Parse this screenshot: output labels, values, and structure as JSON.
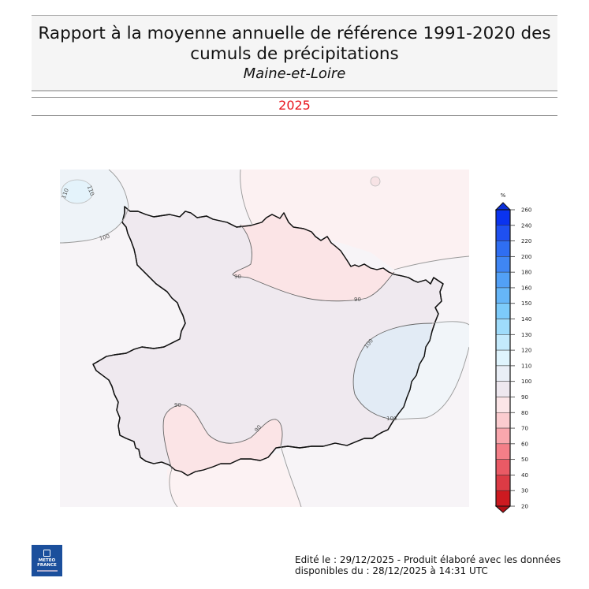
{
  "header": {
    "title_line1": "Rapport à la moyenne annuelle de référence 1991-2020 des",
    "title_line2": "cumuls de précipitations",
    "region": "Maine-et-Loire",
    "period": "2025",
    "period_color": "#e8141c"
  },
  "map": {
    "description": "Precipitation ratio to 1991-2020 annual normal, Maine-et-Loire department",
    "contour_labels": [
      "110",
      "110",
      "100",
      "90",
      "90",
      "90",
      "90",
      "100",
      "100"
    ],
    "department_fill": "#efe9ef",
    "zones": [
      {
        "range": "90-100",
        "color": "#efe9ef"
      },
      {
        "range": "80-90",
        "color": "#fbe4e6"
      },
      {
        "range": "100-110",
        "color": "#e2ebf5"
      },
      {
        "range": "110-120",
        "color": "#e0f3fc"
      }
    ]
  },
  "colorbar": {
    "unit": "%",
    "ticks": [
      "260",
      "240",
      "220",
      "200",
      "180",
      "160",
      "150",
      "140",
      "130",
      "120",
      "110",
      "100",
      "90",
      "80",
      "70",
      "60",
      "50",
      "40",
      "30",
      "20"
    ],
    "colors": [
      "#0a33ef",
      "#1f50f0",
      "#2f6ef2",
      "#3f86f4",
      "#52a0f6",
      "#66b6f8",
      "#7dcbfa",
      "#9fdcfb",
      "#c4eafc",
      "#dff4fd",
      "#e9eef6",
      "#eee8ef",
      "#fbe5e7",
      "#fbcccf",
      "#f9a7ad",
      "#f47f88",
      "#ea5a65",
      "#dc3b45",
      "#cd1a20"
    ],
    "over_color": "#0a2fd8",
    "under_color": "#b31016"
  },
  "footer": {
    "line1": "Edité le : 29/12/2025 - Produit élaboré avec les données",
    "line2": "disponibles du : 28/12/2025 à 14:31 UTC",
    "logo_line1": "METEO",
    "logo_line2": "FRANCE"
  }
}
